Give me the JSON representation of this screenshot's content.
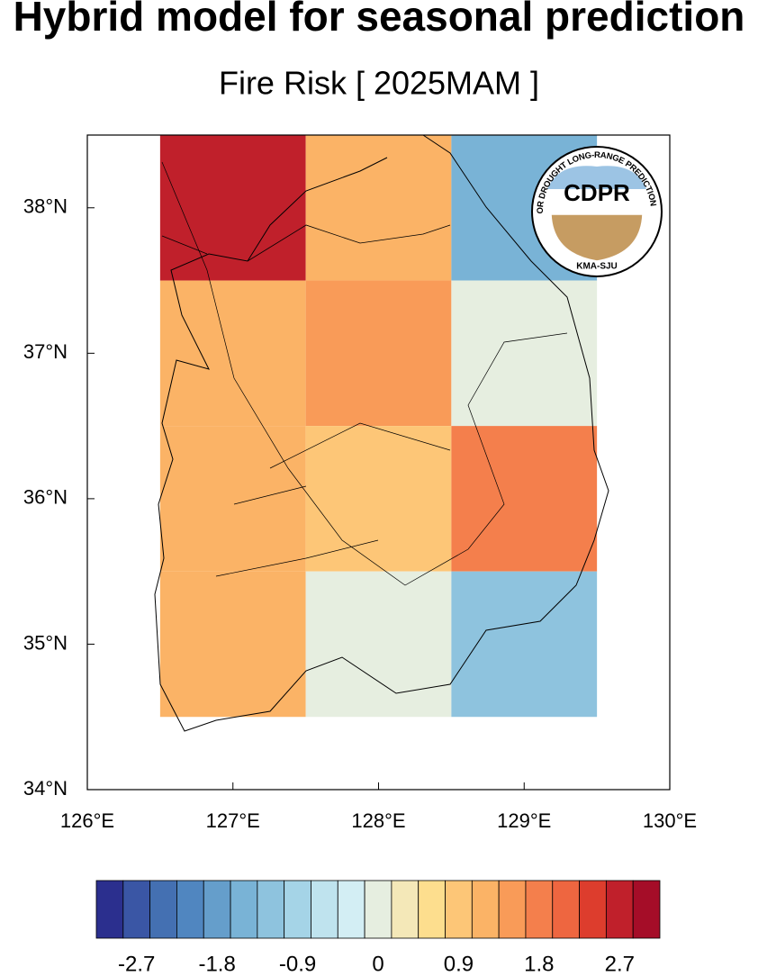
{
  "chart_data": {
    "type": "grid-map",
    "title": "Hybrid model for seasonal prediction",
    "subtitle": "Fire Risk [ 2025MAM ]",
    "logo": {
      "name": "CDPR",
      "ring": "CENTER FOR DROUGHT LONG-RANGE PREDICTION RESEARCH",
      "footer": "KMA-SJU"
    },
    "xlim": [
      126,
      130
    ],
    "ylim": [
      34,
      38.5
    ],
    "xticks": [
      {
        "value": 126,
        "label": "126°E"
      },
      {
        "value": 127,
        "label": "127°E"
      },
      {
        "value": 128,
        "label": "128°E"
      },
      {
        "value": 129,
        "label": "129°E"
      },
      {
        "value": 130,
        "label": "130°E"
      }
    ],
    "yticks": [
      {
        "value": 34,
        "label": "34°N"
      },
      {
        "value": 35,
        "label": "35°N"
      },
      {
        "value": 36,
        "label": "36°N"
      },
      {
        "value": 37,
        "label": "37°N"
      },
      {
        "value": 38,
        "label": "38°N"
      }
    ],
    "lons": [
      127,
      128,
      129
    ],
    "lats": [
      38,
      37,
      36,
      35
    ],
    "cell_size": 1,
    "values": [
      [
        2.7,
        1.2,
        -1.5
      ],
      [
        1.2,
        1.5,
        0
      ],
      [
        1.2,
        0.9,
        1.8
      ],
      [
        1.2,
        0,
        -1.2
      ]
    ],
    "colorbar": {
      "vlim": [
        -3.15,
        3.15
      ],
      "ticks": [
        -2.7,
        -1.8,
        -0.9,
        0,
        0.9,
        1.8,
        2.7
      ],
      "colors": [
        "#2b2f8e",
        "#3a56a5",
        "#4470b2",
        "#5086c0",
        "#659ecb",
        "#79b3d6",
        "#8ec3de",
        "#a5d4e7",
        "#bfe3ee",
        "#d3eef4",
        "#e6eee0",
        "#f4e8b8",
        "#fdde8e",
        "#fdc677",
        "#fbb366",
        "#f99b58",
        "#f47f4c",
        "#ee6640",
        "#dd3d2d",
        "#c0202b",
        "#a50d28"
      ]
    }
  }
}
